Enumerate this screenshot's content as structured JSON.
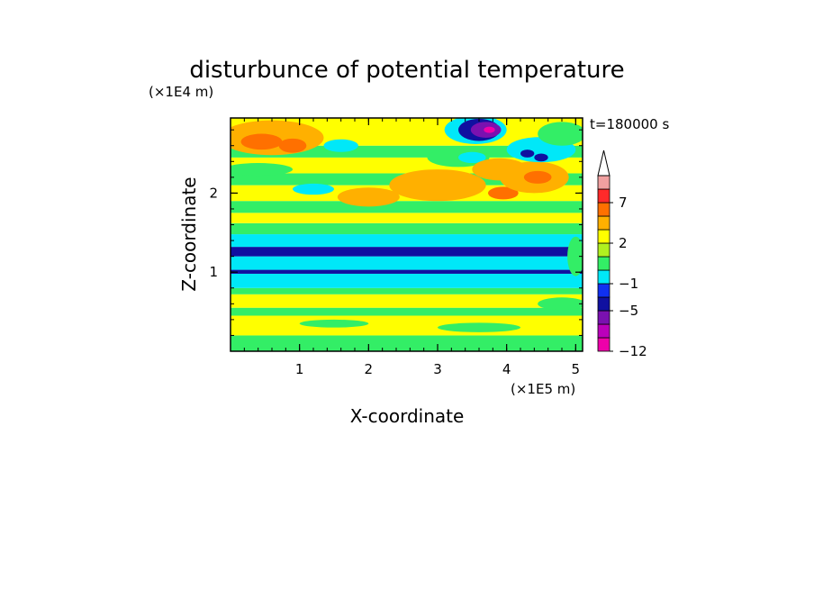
{
  "chart_data": {
    "type": "heatmap",
    "title": "disturbunce of potential temperature",
    "xlabel": "X-coordinate",
    "ylabel": "Z-coordinate",
    "x_unit": "(×1E5 m)",
    "y_unit": "(×1E4 m)",
    "time_label": "t=180000 s",
    "xlim": [
      0,
      5.1
    ],
    "ylim": [
      0,
      2.95
    ],
    "x_ticks": [
      {
        "value": 1,
        "label": "1"
      },
      {
        "value": 2,
        "label": "2"
      },
      {
        "value": 3,
        "label": "3"
      },
      {
        "value": 4,
        "label": "4"
      },
      {
        "value": 5,
        "label": "5"
      }
    ],
    "y_ticks": [
      {
        "value": 1,
        "label": "1"
      },
      {
        "value": 2,
        "label": "2"
      }
    ],
    "colorbar": {
      "levels": [
        -12,
        -9,
        -7,
        -5,
        -3,
        -1,
        0,
        1,
        2,
        4,
        5,
        7,
        9,
        12
      ],
      "labeled_levels": [
        {
          "value": -12,
          "label": "−12"
        },
        {
          "value": -5,
          "label": "−5"
        },
        {
          "value": -1,
          "label": "−1"
        },
        {
          "value": 2,
          "label": "2"
        },
        {
          "value": 7,
          "label": "7"
        }
      ],
      "colors": [
        "#ee00aa",
        "#bb00bb",
        "#7a11b0",
        "#1010a0",
        "#1030f0",
        "#00e8f8",
        "#33ee66",
        "#b0f020",
        "#ffff00",
        "#ffb000",
        "#ff7000",
        "#ff2a2a",
        "#f0a0a0"
      ],
      "extend_max_color": "#ffffff"
    },
    "field": {
      "x_range": [
        0,
        5.1
      ],
      "z_range": [
        0,
        2.95
      ],
      "bands": [
        {
          "z_from": 0.0,
          "z_to": 0.2,
          "value": 0.6
        },
        {
          "z_from": 0.2,
          "z_to": 0.45,
          "value": 2.5
        },
        {
          "z_from": 0.45,
          "z_to": 0.55,
          "value": 0.6
        },
        {
          "z_from": 0.55,
          "z_to": 0.72,
          "value": 2.5
        },
        {
          "z_from": 0.72,
          "z_to": 0.8,
          "value": 0.6
        },
        {
          "z_from": 0.8,
          "z_to": 0.98,
          "value": -0.6
        },
        {
          "z_from": 0.98,
          "z_to": 1.03,
          "value": -3.6
        },
        {
          "z_from": 1.03,
          "z_to": 1.2,
          "value": -0.6
        },
        {
          "z_from": 1.2,
          "z_to": 1.32,
          "value": -3.6
        },
        {
          "z_from": 1.32,
          "z_to": 1.48,
          "value": -0.6
        },
        {
          "z_from": 1.48,
          "z_to": 1.62,
          "value": 0.6
        },
        {
          "z_from": 1.62,
          "z_to": 1.75,
          "value": 2.5
        },
        {
          "z_from": 1.75,
          "z_to": 1.9,
          "value": 0.6
        },
        {
          "z_from": 1.9,
          "z_to": 2.1,
          "value": 2.5
        },
        {
          "z_from": 2.1,
          "z_to": 2.25,
          "value": 0.6
        },
        {
          "z_from": 2.25,
          "z_to": 2.45,
          "value": 2.5
        },
        {
          "z_from": 2.45,
          "z_to": 2.6,
          "value": 0.6
        },
        {
          "z_from": 2.6,
          "z_to": 2.95,
          "value": 2.5
        }
      ],
      "features": [
        {
          "x": 0.6,
          "z": 2.7,
          "rx": 0.75,
          "rz": 0.22,
          "value": 4.5
        },
        {
          "x": 0.45,
          "z": 2.65,
          "rx": 0.3,
          "rz": 0.1,
          "value": 5.5
        },
        {
          "x": 0.9,
          "z": 2.6,
          "rx": 0.2,
          "rz": 0.09,
          "value": 5.5
        },
        {
          "x": 0.4,
          "z": 2.3,
          "rx": 0.5,
          "rz": 0.08,
          "value": 0.6
        },
        {
          "x": 1.2,
          "z": 2.05,
          "rx": 0.3,
          "rz": 0.07,
          "value": -0.6
        },
        {
          "x": 1.6,
          "z": 2.6,
          "rx": 0.25,
          "rz": 0.08,
          "value": -0.6
        },
        {
          "x": 2.0,
          "z": 1.95,
          "rx": 0.45,
          "rz": 0.12,
          "value": 4.5
        },
        {
          "x": 3.0,
          "z": 2.1,
          "rx": 0.7,
          "rz": 0.2,
          "value": 4.5
        },
        {
          "x": 3.3,
          "z": 2.45,
          "rx": 0.45,
          "rz": 0.12,
          "value": 0.6
        },
        {
          "x": 3.5,
          "z": 2.45,
          "rx": 0.2,
          "rz": 0.07,
          "value": -0.6
        },
        {
          "x": 3.9,
          "z": 2.3,
          "rx": 0.4,
          "rz": 0.14,
          "value": 4.5
        },
        {
          "x": 3.95,
          "z": 2.0,
          "rx": 0.22,
          "rz": 0.08,
          "value": 5.5
        },
        {
          "x": 4.4,
          "z": 2.2,
          "rx": 0.5,
          "rz": 0.2,
          "value": 4.5
        },
        {
          "x": 4.45,
          "z": 2.2,
          "rx": 0.2,
          "rz": 0.08,
          "value": 5.5
        },
        {
          "x": 4.5,
          "z": 2.55,
          "rx": 0.5,
          "rz": 0.16,
          "value": -0.6
        },
        {
          "x": 3.55,
          "z": 2.8,
          "rx": 0.45,
          "rz": 0.18,
          "value": -0.6
        },
        {
          "x": 3.6,
          "z": 2.8,
          "rx": 0.3,
          "rz": 0.14,
          "value": -3.6
        },
        {
          "x": 3.7,
          "z": 2.8,
          "rx": 0.22,
          "rz": 0.1,
          "value": -5.5
        },
        {
          "x": 3.75,
          "z": 2.8,
          "rx": 0.08,
          "rz": 0.04,
          "value": -10
        },
        {
          "x": 4.3,
          "z": 2.5,
          "rx": 0.1,
          "rz": 0.05,
          "value": -3.6
        },
        {
          "x": 4.5,
          "z": 2.45,
          "rx": 0.1,
          "rz": 0.05,
          "value": -3.6
        },
        {
          "x": 4.8,
          "z": 2.75,
          "rx": 0.35,
          "rz": 0.15,
          "value": 0.6
        },
        {
          "x": 1.5,
          "z": 0.35,
          "rx": 0.5,
          "rz": 0.05,
          "value": 0.6
        },
        {
          "x": 3.6,
          "z": 0.3,
          "rx": 0.6,
          "rz": 0.06,
          "value": 0.6
        },
        {
          "x": 4.8,
          "z": 0.6,
          "rx": 0.35,
          "rz": 0.08,
          "value": 0.6
        },
        {
          "x": 5.0,
          "z": 1.2,
          "rx": 0.12,
          "rz": 0.25,
          "value": 0.6
        }
      ]
    }
  }
}
